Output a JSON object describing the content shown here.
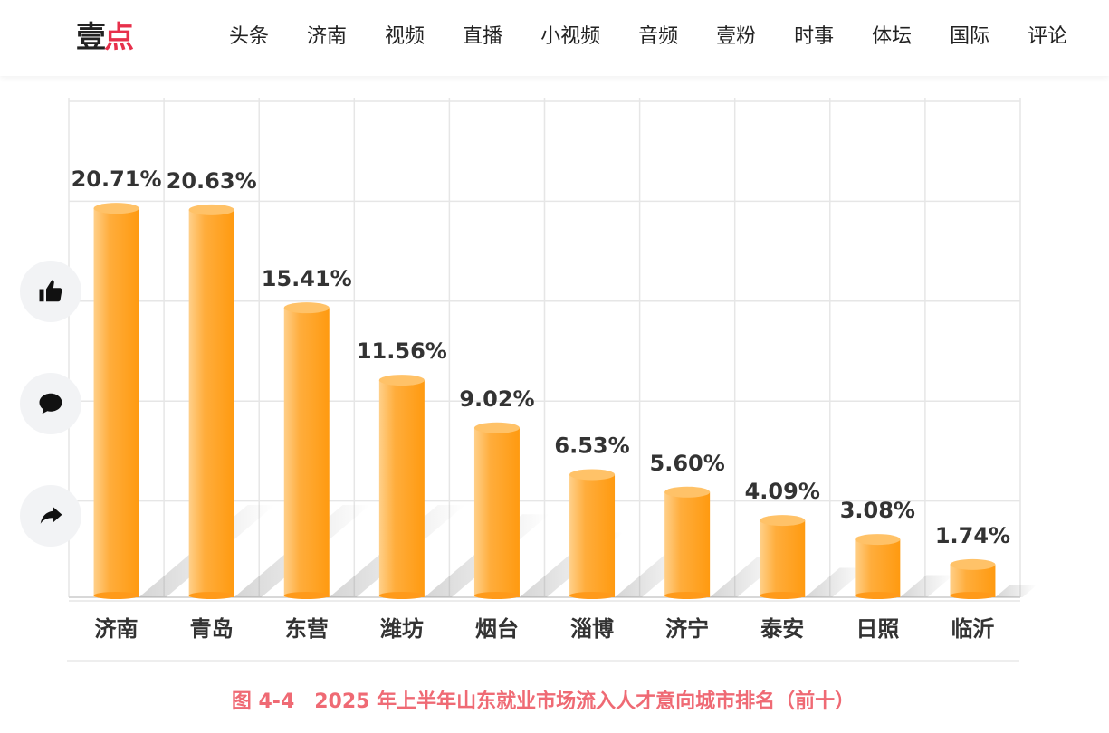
{
  "header": {
    "logo_main": "壹",
    "logo_accent": "点",
    "nav": [
      "头条",
      "济南",
      "视频",
      "直播",
      "小视频",
      "音频",
      "壹粉",
      "时事",
      "体坛",
      "国际",
      "评论"
    ]
  },
  "sidebar": {
    "icons": [
      "thumbs-up-icon",
      "comment-icon",
      "share-icon"
    ]
  },
  "colors": {
    "bar": "#ff9a1f",
    "bar_light": "#ffc670",
    "caption": "#ef6a74",
    "grid": "#e6e6e6"
  },
  "chart_data": {
    "type": "bar",
    "title": "",
    "categories": [
      "济南",
      "青岛",
      "东营",
      "潍坊",
      "烟台",
      "淄博",
      "济宁",
      "泰安",
      "日照",
      "临沂"
    ],
    "values": [
      20.71,
      20.63,
      15.41,
      11.56,
      9.02,
      6.53,
      5.6,
      4.09,
      3.08,
      1.74
    ],
    "labels": [
      "20.71%",
      "20.63%",
      "15.41%",
      "11.56%",
      "9.02%",
      "6.53%",
      "5.60%",
      "4.09%",
      "3.08%",
      "1.74%"
    ],
    "xlabel": "",
    "ylabel": "",
    "ylim": [
      0,
      25
    ],
    "grid": true,
    "legend": "none"
  },
  "caption": "图 4-4　2025 年上半年山东就业市场流入人才意向城市排名（前十）"
}
